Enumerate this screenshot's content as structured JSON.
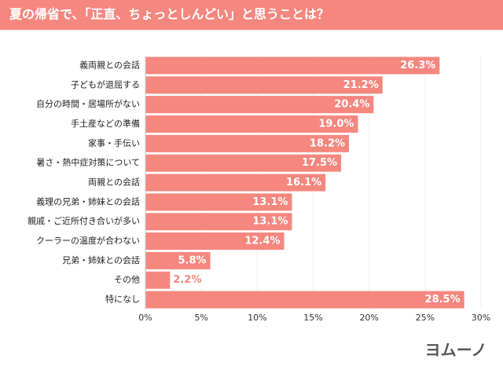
{
  "chart_data": {
    "type": "bar",
    "orientation": "horizontal",
    "title": "夏の帰省で、「正直、ちょっとしんどい」と思うことは？",
    "categories": [
      "義両親との会話",
      "子どもが退屈する",
      "自分の時間・居場所がない",
      "手土産などの準備",
      "家事・手伝い",
      "暑さ・熱中症対策について",
      "両親との会話",
      "義理の兄弟・姉妹との会話",
      "親戚・ご近所付き合いが多い",
      "クーラーの温度が合わない",
      "兄弟・姉妹との会話",
      "その他",
      "特になし"
    ],
    "values": [
      26.3,
      21.2,
      20.4,
      19.0,
      18.2,
      17.5,
      16.1,
      13.1,
      13.1,
      12.4,
      5.8,
      2.2,
      28.5
    ],
    "value_labels": [
      "26.3%",
      "21.2%",
      "20.4%",
      "19.0%",
      "18.2%",
      "17.5%",
      "16.1%",
      "13.1%",
      "13.1%",
      "12.4%",
      "5.8%",
      "2.2%",
      "28.5%"
    ],
    "color": "#f5877f",
    "xlim": [
      0,
      30
    ],
    "xticks": [
      {
        "value": 0,
        "label": "0%"
      },
      {
        "value": 5,
        "label": "5%"
      },
      {
        "value": 10,
        "label": "10%"
      },
      {
        "value": 15,
        "label": "15%"
      },
      {
        "value": 20,
        "label": "20%"
      },
      {
        "value": 25,
        "label": "25%"
      },
      {
        "value": 30,
        "label": "30%"
      }
    ],
    "grid": true,
    "logo": "ヨムーノ"
  }
}
